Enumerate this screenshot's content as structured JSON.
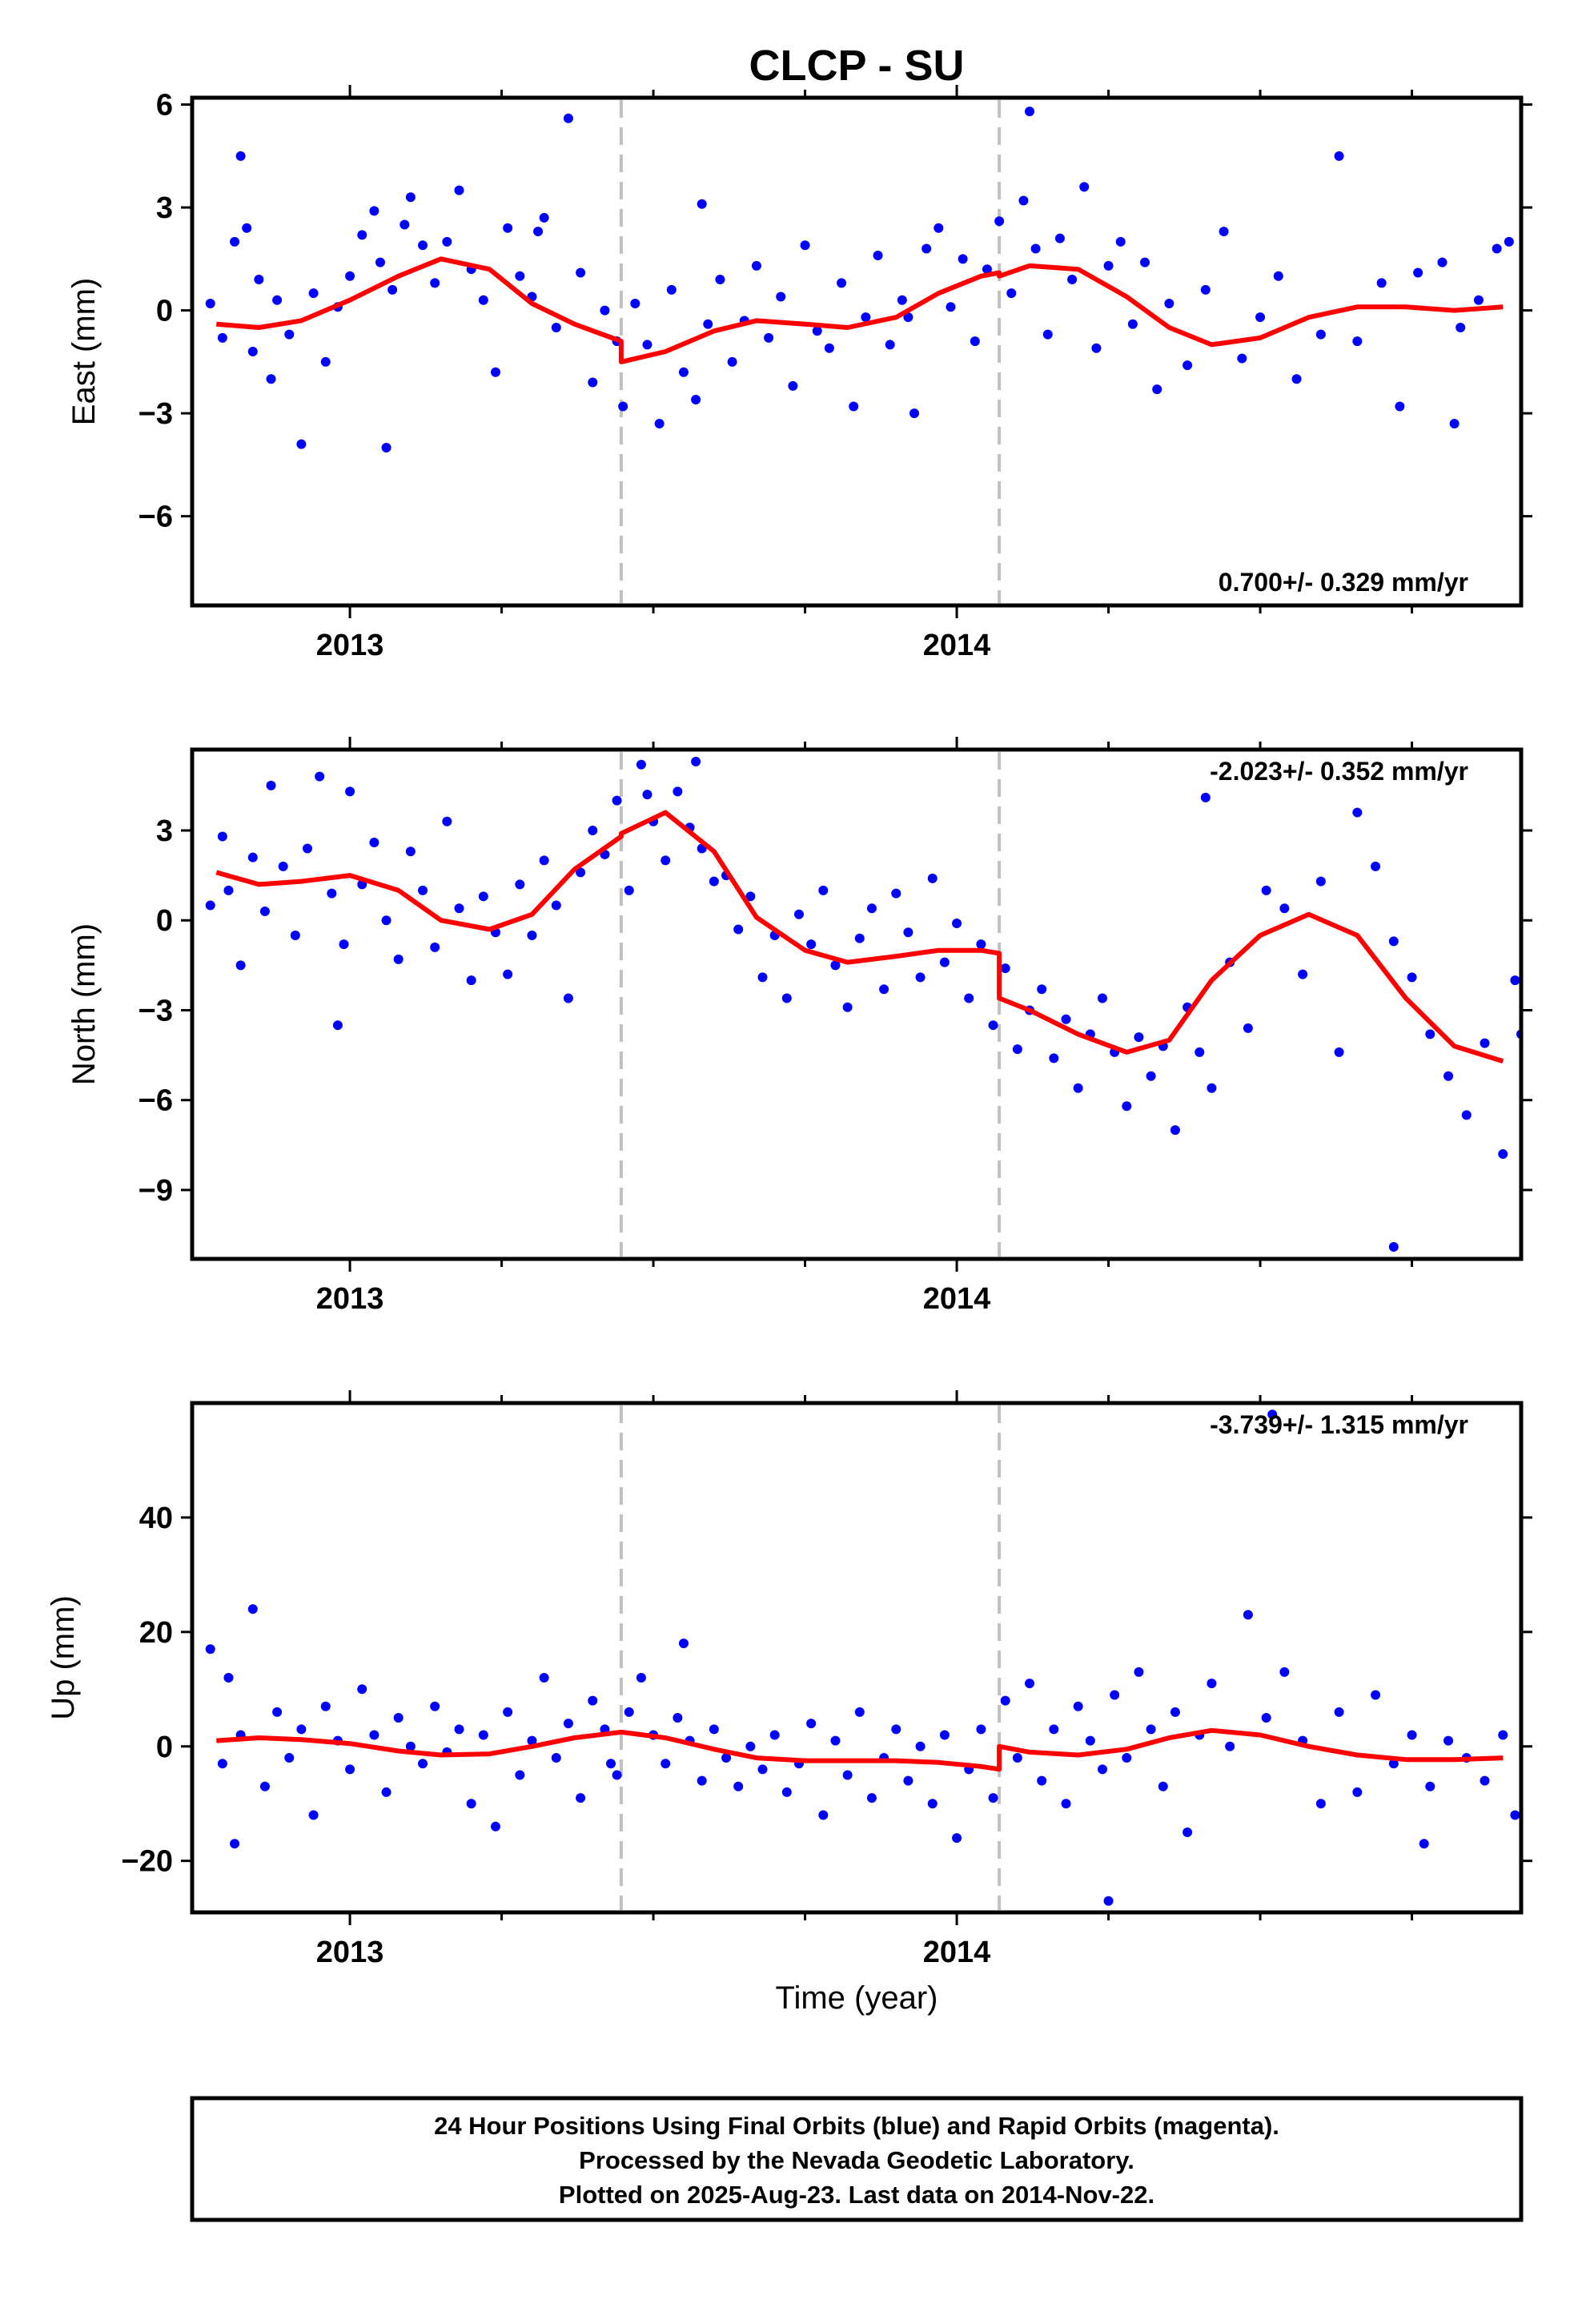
{
  "title": "CLCP - SU",
  "xlabel": "Time (year)",
  "footer": {
    "line1": "24 Hour Positions Using Final Orbits (blue) and Rapid Orbits (magenta).",
    "line2": "Processed by the Nevada Geodetic Laboratory.",
    "line3": "Plotted on 2025-Aug-23. Last data on 2014-Nov-22."
  },
  "colors": {
    "points": "#0000ff",
    "fit": "#ff0000",
    "steps": "#c0c0c0",
    "frame": "#000000"
  },
  "chart_data": [
    {
      "type": "scatter",
      "panel": "east",
      "ylabel": "East (mm)",
      "rate_label": "0.700+/- 0.329 mm/yr",
      "xlim": [
        2012.74,
        2014.93
      ],
      "ylim": [
        -8.6,
        6.2
      ],
      "yticks": [
        6,
        3,
        0,
        -3,
        -6
      ],
      "ytick_labels": [
        "6",
        "3",
        "0",
        "−3",
        "−6"
      ],
      "xticks": [
        2013,
        2014
      ],
      "xtick_labels": [
        "2013",
        "2014"
      ],
      "step_dates": [
        2013.447,
        2014.07
      ],
      "fit": {
        "x": [
          2012.78,
          2012.85,
          2012.92,
          2013.0,
          2013.08,
          2013.15,
          2013.23,
          2013.3,
          2013.37,
          2013.447,
          2013.447,
          2013.52,
          2013.6,
          2013.67,
          2013.75,
          2013.82,
          2013.9,
          2013.97,
          2014.04,
          2014.07,
          2014.07,
          2014.12,
          2014.2,
          2014.28,
          2014.35,
          2014.42,
          2014.5,
          2014.58,
          2014.66,
          2014.74,
          2014.82,
          2014.9
        ],
        "y": [
          -0.4,
          -0.5,
          -0.3,
          0.3,
          1.0,
          1.5,
          1.2,
          0.2,
          -0.4,
          -0.9,
          -1.5,
          -1.2,
          -0.6,
          -0.3,
          -0.4,
          -0.5,
          -0.2,
          0.5,
          1.0,
          1.1,
          1.0,
          1.3,
          1.2,
          0.4,
          -0.5,
          -1.0,
          -0.8,
          -0.2,
          0.1,
          0.1,
          0.0,
          0.1
        ]
      },
      "points": {
        "x": [
          2012.77,
          2012.79,
          2012.81,
          2012.82,
          2012.84,
          2012.85,
          2012.87,
          2012.88,
          2012.9,
          2012.92,
          2012.94,
          2012.96,
          2012.98,
          2013.0,
          2013.02,
          2013.04,
          2013.05,
          2013.07,
          2013.09,
          2013.1,
          2013.12,
          2013.14,
          2013.16,
          2013.18,
          2013.2,
          2013.22,
          2013.24,
          2013.26,
          2013.28,
          2013.3,
          2013.32,
          2013.34,
          2013.36,
          2013.38,
          2013.4,
          2013.42,
          2013.44,
          2013.45,
          2013.47,
          2013.49,
          2013.51,
          2013.53,
          2013.55,
          2013.57,
          2013.59,
          2013.61,
          2013.63,
          2013.65,
          2013.67,
          2013.69,
          2013.71,
          2013.73,
          2013.75,
          2013.77,
          2013.79,
          2013.81,
          2013.83,
          2013.85,
          2013.87,
          2013.89,
          2013.91,
          2013.93,
          2013.95,
          2013.97,
          2013.99,
          2014.01,
          2014.03,
          2014.05,
          2014.07,
          2014.09,
          2014.11,
          2014.13,
          2014.15,
          2014.17,
          2014.19,
          2014.21,
          2014.23,
          2014.25,
          2014.27,
          2014.29,
          2014.31,
          2014.33,
          2014.35,
          2014.38,
          2014.41,
          2014.44,
          2014.47,
          2014.5,
          2014.53,
          2014.56,
          2014.6,
          2014.63,
          2014.66,
          2014.7,
          2014.73,
          2014.76,
          2014.8,
          2014.83,
          2014.86,
          2014.89,
          2014.91,
          2014.82,
          2013.06,
          2013.31,
          2012.83,
          2014.12,
          2013.92,
          2013.58
        ],
        "y": [
          0.2,
          -0.8,
          2.0,
          4.5,
          -1.2,
          0.9,
          -2.0,
          0.3,
          -0.7,
          -3.9,
          0.5,
          -1.5,
          0.1,
          1.0,
          2.2,
          2.9,
          1.4,
          0.6,
          2.5,
          3.3,
          1.9,
          0.8,
          2.0,
          3.5,
          1.2,
          0.3,
          -1.8,
          2.4,
          1.0,
          0.4,
          2.7,
          -0.5,
          5.6,
          1.1,
          -2.1,
          0.0,
          -0.9,
          -2.8,
          0.2,
          -1.0,
          -3.3,
          0.6,
          -1.8,
          -2.6,
          -0.4,
          0.9,
          -1.5,
          -0.3,
          1.3,
          -0.8,
          0.4,
          -2.2,
          1.9,
          -0.6,
          -1.1,
          0.8,
          -2.8,
          -0.2,
          1.6,
          -1.0,
          0.3,
          -3.0,
          1.8,
          2.4,
          0.1,
          1.5,
          -0.9,
          1.2,
          2.6,
          0.5,
          3.2,
          1.8,
          -0.7,
          2.1,
          0.9,
          3.6,
          -1.1,
          1.3,
          2.0,
          -0.4,
          1.4,
          -2.3,
          0.2,
          -1.6,
          0.6,
          2.3,
          -1.4,
          -0.2,
          1.0,
          -2.0,
          -0.7,
          4.5,
          -0.9,
          0.8,
          -2.8,
          1.1,
          1.4,
          -0.5,
          0.3,
          1.8,
          2.0,
          -3.3,
          -4.0,
          2.3,
          2.4,
          5.8,
          -0.2,
          3.1
        ]
      }
    },
    {
      "type": "scatter",
      "panel": "north",
      "ylabel": "North (mm)",
      "rate_label": "-2.023+/- 0.352 mm/yr",
      "xlim": [
        2012.74,
        2014.93
      ],
      "ylim": [
        -11.3,
        5.7
      ],
      "yticks": [
        3,
        0,
        -3,
        -6,
        -9
      ],
      "ytick_labels": [
        "3",
        "0",
        "−3",
        "−6",
        "−9"
      ],
      "xticks": [
        2013,
        2014
      ],
      "xtick_labels": [
        "2013",
        "2014"
      ],
      "step_dates": [
        2013.447,
        2014.07
      ],
      "fit": {
        "x": [
          2012.78,
          2012.85,
          2012.92,
          2013.0,
          2013.08,
          2013.15,
          2013.23,
          2013.3,
          2013.37,
          2013.447,
          2013.447,
          2013.52,
          2013.6,
          2013.67,
          2013.75,
          2013.82,
          2013.9,
          2013.97,
          2014.04,
          2014.07,
          2014.07,
          2014.12,
          2014.2,
          2014.28,
          2014.35,
          2014.42,
          2014.5,
          2014.58,
          2014.66,
          2014.74,
          2014.82,
          2014.9
        ],
        "y": [
          1.6,
          1.2,
          1.3,
          1.5,
          1.0,
          0.0,
          -0.3,
          0.2,
          1.7,
          2.8,
          2.9,
          3.6,
          2.3,
          0.1,
          -1.0,
          -1.4,
          -1.2,
          -1.0,
          -1.0,
          -1.1,
          -2.6,
          -3.0,
          -3.8,
          -4.4,
          -4.0,
          -2.0,
          -0.5,
          0.2,
          -0.5,
          -2.6,
          -4.2,
          -4.7
        ]
      },
      "points": {
        "x": [
          2012.77,
          2012.79,
          2012.8,
          2012.82,
          2012.84,
          2012.86,
          2012.87,
          2012.89,
          2012.91,
          2012.93,
          2012.95,
          2012.97,
          2012.99,
          2013.0,
          2013.02,
          2013.04,
          2013.06,
          2013.08,
          2013.1,
          2013.12,
          2013.14,
          2013.16,
          2013.18,
          2013.2,
          2013.22,
          2013.24,
          2013.26,
          2013.28,
          2013.3,
          2013.32,
          2013.34,
          2013.36,
          2013.38,
          2013.4,
          2013.42,
          2013.44,
          2013.46,
          2013.48,
          2013.5,
          2013.52,
          2013.54,
          2013.56,
          2013.58,
          2013.6,
          2013.62,
          2013.64,
          2013.66,
          2013.68,
          2013.7,
          2013.72,
          2013.74,
          2013.76,
          2013.78,
          2013.8,
          2013.82,
          2013.84,
          2013.86,
          2013.88,
          2013.9,
          2013.92,
          2013.94,
          2013.96,
          2013.98,
          2014.0,
          2014.02,
          2014.04,
          2014.06,
          2014.08,
          2014.1,
          2014.12,
          2014.14,
          2014.16,
          2014.18,
          2014.2,
          2014.22,
          2014.24,
          2014.26,
          2014.28,
          2014.3,
          2014.32,
          2014.34,
          2014.36,
          2014.38,
          2014.4,
          2014.42,
          2014.45,
          2014.48,
          2014.51,
          2014.54,
          2014.57,
          2014.6,
          2014.63,
          2014.66,
          2014.69,
          2014.72,
          2014.75,
          2014.78,
          2014.81,
          2014.84,
          2014.87,
          2014.9,
          2014.92,
          2014.93,
          2013.57,
          2013.49,
          2012.98,
          2014.41,
          2014.72
        ],
        "y": [
          0.5,
          2.8,
          1.0,
          -1.5,
          2.1,
          0.3,
          4.5,
          1.8,
          -0.5,
          2.4,
          4.8,
          0.9,
          -0.8,
          4.3,
          1.2,
          2.6,
          0.0,
          -1.3,
          2.3,
          1.0,
          -0.9,
          3.3,
          0.4,
          -2.0,
          0.8,
          -0.4,
          -1.8,
          1.2,
          -0.5,
          2.0,
          0.5,
          -2.6,
          1.6,
          3.0,
          2.2,
          4.0,
          1.0,
          5.2,
          3.3,
          2.0,
          4.3,
          3.1,
          2.4,
          1.3,
          1.5,
          -0.3,
          0.8,
          -1.9,
          -0.5,
          -2.6,
          0.2,
          -0.8,
          1.0,
          -1.5,
          -2.9,
          -0.6,
          0.4,
          -2.3,
          0.9,
          -0.4,
          -1.9,
          1.4,
          -1.4,
          -0.1,
          -2.6,
          -0.8,
          -3.5,
          -1.6,
          -4.3,
          -3.0,
          -2.3,
          -4.6,
          -3.3,
          -5.6,
          -3.8,
          -2.6,
          -4.4,
          -6.2,
          -3.9,
          -5.2,
          -4.2,
          -7.0,
          -2.9,
          -4.4,
          -5.6,
          -1.4,
          -3.6,
          1.0,
          0.4,
          -1.8,
          1.3,
          -4.4,
          3.6,
          1.8,
          -0.7,
          -1.9,
          -3.8,
          -5.2,
          -6.5,
          -4.1,
          -7.8,
          -2.0,
          -3.8,
          5.3,
          4.2,
          -3.5,
          4.1,
          -10.9
        ]
      }
    },
    {
      "type": "scatter",
      "panel": "up",
      "ylabel": "Up (mm)",
      "rate_label": "-3.739+/- 1.315 mm/yr",
      "xlim": [
        2012.74,
        2014.93
      ],
      "ylim": [
        -29,
        60
      ],
      "yticks": [
        40,
        20,
        0,
        -20
      ],
      "ytick_labels": [
        "40",
        "20",
        "0",
        "−20"
      ],
      "xticks": [
        2013,
        2014
      ],
      "xtick_labels": [
        "2013",
        "2014"
      ],
      "step_dates": [
        2013.447,
        2014.07
      ],
      "fit": {
        "x": [
          2012.78,
          2012.85,
          2012.92,
          2013.0,
          2013.08,
          2013.15,
          2013.23,
          2013.3,
          2013.37,
          2013.447,
          2013.447,
          2013.52,
          2013.6,
          2013.67,
          2013.75,
          2013.82,
          2013.9,
          2013.97,
          2014.04,
          2014.07,
          2014.07,
          2014.12,
          2014.2,
          2014.28,
          2014.35,
          2014.42,
          2014.5,
          2014.58,
          2014.66,
          2014.74,
          2014.82,
          2014.9
        ],
        "y": [
          1.0,
          1.5,
          1.2,
          0.5,
          -0.8,
          -1.5,
          -1.3,
          0.0,
          1.5,
          2.5,
          2.5,
          1.5,
          -0.5,
          -2.0,
          -2.5,
          -2.5,
          -2.5,
          -2.8,
          -3.5,
          -4.0,
          0.0,
          -1.0,
          -1.5,
          -0.5,
          1.5,
          2.8,
          2.0,
          0.0,
          -1.5,
          -2.3,
          -2.3,
          -2.0
        ]
      },
      "points": {
        "x": [
          2012.77,
          2012.79,
          2012.8,
          2012.82,
          2012.84,
          2012.86,
          2012.88,
          2012.9,
          2012.92,
          2012.94,
          2012.96,
          2012.98,
          2013.0,
          2013.02,
          2013.04,
          2013.06,
          2013.08,
          2013.1,
          2013.12,
          2013.14,
          2013.16,
          2013.18,
          2013.2,
          2013.22,
          2013.24,
          2013.26,
          2013.28,
          2013.3,
          2013.32,
          2013.34,
          2013.36,
          2013.38,
          2013.4,
          2013.42,
          2013.44,
          2013.46,
          2013.48,
          2013.5,
          2013.52,
          2013.54,
          2013.56,
          2013.58,
          2013.6,
          2013.62,
          2013.64,
          2013.66,
          2013.68,
          2013.7,
          2013.72,
          2013.74,
          2013.76,
          2013.78,
          2013.8,
          2013.82,
          2013.84,
          2013.86,
          2013.88,
          2013.9,
          2013.92,
          2013.94,
          2013.96,
          2013.98,
          2014.0,
          2014.02,
          2014.04,
          2014.06,
          2014.08,
          2014.1,
          2014.12,
          2014.14,
          2014.16,
          2014.18,
          2014.2,
          2014.22,
          2014.24,
          2014.26,
          2014.28,
          2014.3,
          2014.32,
          2014.34,
          2014.36,
          2014.38,
          2014.4,
          2014.42,
          2014.45,
          2014.48,
          2014.51,
          2014.54,
          2014.57,
          2014.6,
          2014.63,
          2014.66,
          2014.69,
          2014.72,
          2014.75,
          2014.78,
          2014.81,
          2014.84,
          2014.87,
          2014.9,
          2014.92,
          2014.77,
          2012.81,
          2014.25,
          2014.52,
          2013.55,
          2013.43
        ],
        "y": [
          17.0,
          -3.0,
          12.0,
          2.0,
          24.0,
          -7.0,
          6.0,
          -2.0,
          3.0,
          -12.0,
          7.0,
          1.0,
          -4.0,
          10.0,
          2.0,
          -8.0,
          5.0,
          0.0,
          -3.0,
          7.0,
          -1.0,
          3.0,
          -10.0,
          2.0,
          -14.0,
          6.0,
          -5.0,
          1.0,
          12.0,
          -2.0,
          4.0,
          -9.0,
          8.0,
          3.0,
          -5.0,
          6.0,
          12.0,
          2.0,
          -3.0,
          5.0,
          1.0,
          -6.0,
          3.0,
          -2.0,
          -7.0,
          0.0,
          -4.0,
          2.0,
          -8.0,
          -3.0,
          4.0,
          -12.0,
          1.0,
          -5.0,
          6.0,
          -9.0,
          -2.0,
          3.0,
          -6.0,
          0.0,
          -10.0,
          2.0,
          -16.0,
          -4.0,
          3.0,
          -9.0,
          8.0,
          -2.0,
          11.0,
          -6.0,
          3.0,
          -10.0,
          7.0,
          1.0,
          -4.0,
          9.0,
          -2.0,
          13.0,
          3.0,
          -7.0,
          6.0,
          -15.0,
          2.0,
          11.0,
          0.0,
          23.0,
          5.0,
          13.0,
          1.0,
          -10.0,
          6.0,
          -8.0,
          9.0,
          -3.0,
          2.0,
          -7.0,
          1.0,
          -2.0,
          -6.0,
          2.0,
          -12.0,
          -17.0,
          -17.0,
          -27.0,
          58.0,
          18.0,
          -3.0
        ]
      }
    }
  ]
}
